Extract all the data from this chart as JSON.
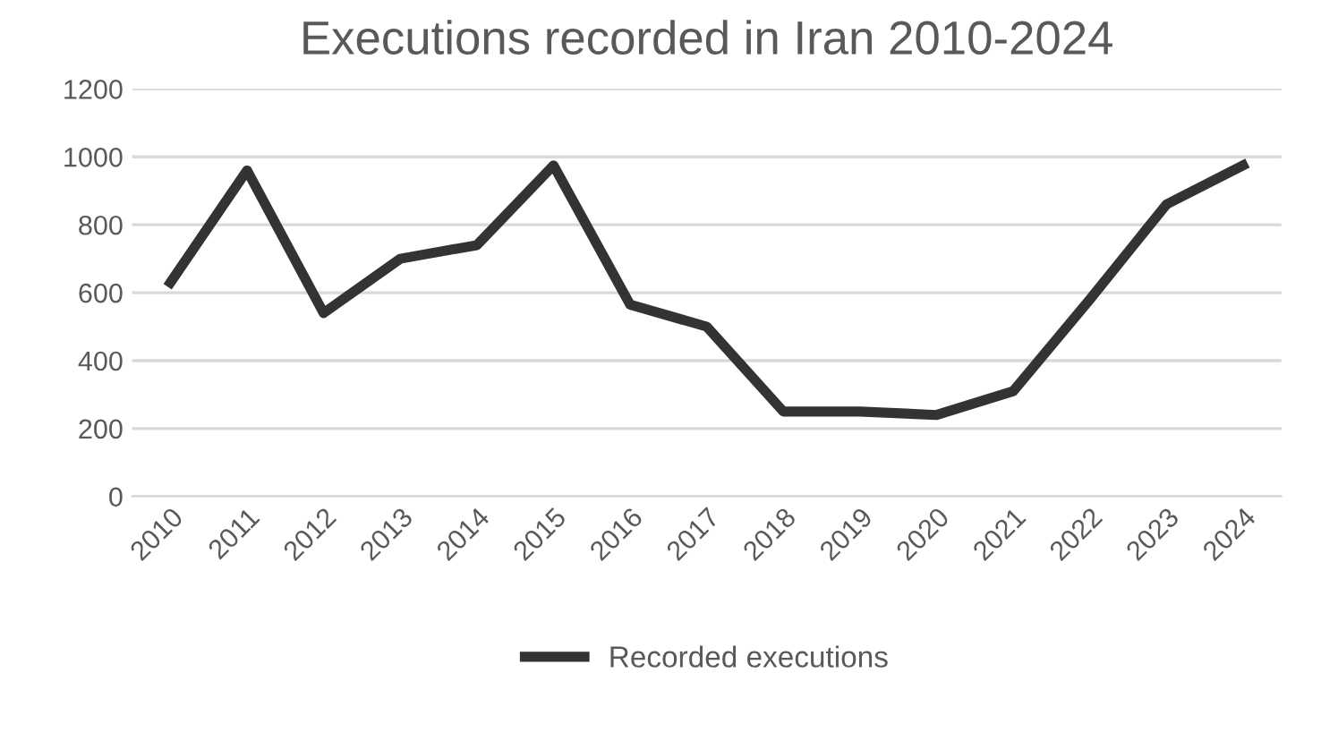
{
  "chart_data": {
    "type": "line",
    "title": "Executions recorded in Iran 2010-2024",
    "categories": [
      "2010",
      "2011",
      "2012",
      "2013",
      "2014",
      "2015",
      "2016",
      "2017",
      "2018",
      "2019",
      "2020",
      "2021",
      "2022",
      "2023",
      "2024"
    ],
    "series": [
      {
        "name": "Recorded executions",
        "color": "#333333",
        "values": [
          630,
          960,
          540,
          700,
          740,
          975,
          565,
          500,
          250,
          250,
          240,
          310,
          580,
          860,
          975
        ]
      }
    ],
    "ylim": [
      0,
      1200
    ],
    "yticks": [
      0,
      200,
      400,
      600,
      800,
      1000,
      1200
    ],
    "grid": "y",
    "legend": "bottom",
    "marker": "none",
    "line_style": "solid"
  }
}
